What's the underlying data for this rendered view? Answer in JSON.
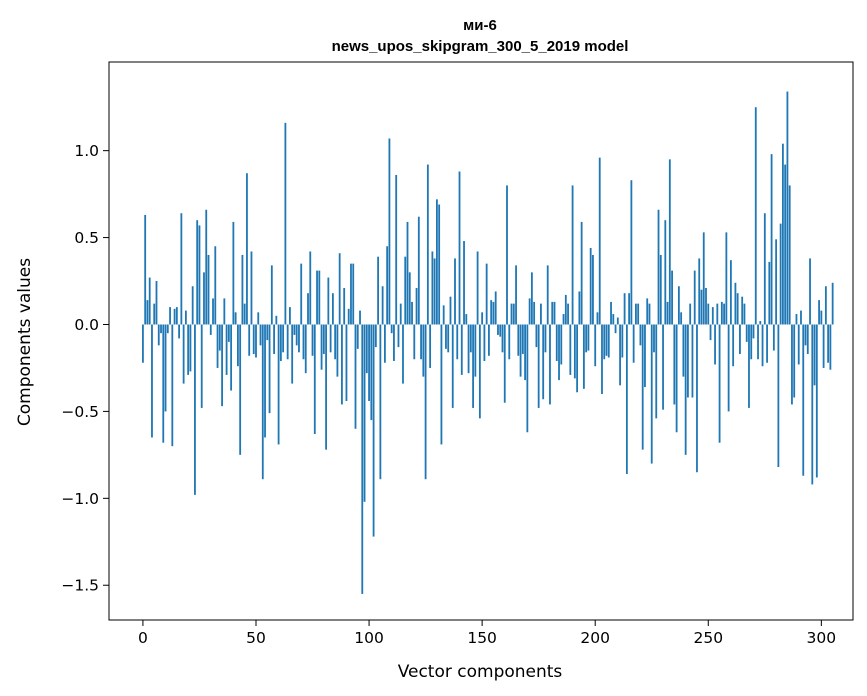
{
  "chart_data": {
    "type": "bar",
    "title": "ми-6",
    "subtitle": "news_upos_skipgram_300_5_2019 model",
    "xlabel": "Vector components",
    "ylabel": "Components values",
    "xlim": [
      -15,
      314
    ],
    "ylim": [
      -1.7,
      1.51
    ],
    "xticks": [
      0,
      50,
      100,
      150,
      200,
      250,
      300
    ],
    "yticks": [
      -1.5,
      -1.0,
      -0.5,
      0.0,
      0.5,
      1.0
    ],
    "ytick_labels": [
      "−1.5",
      "−1.0",
      "−0.5",
      "0.0",
      "0.5",
      "1.0"
    ],
    "grid": false,
    "legend": "none",
    "bar_color": "#1f77b4",
    "values": [
      -0.22,
      0.63,
      0.14,
      0.27,
      -0.65,
      0.12,
      0.25,
      -0.12,
      -0.05,
      -0.68,
      -0.5,
      -0.05,
      0.1,
      -0.7,
      0.09,
      0.1,
      -0.08,
      0.64,
      -0.34,
      0.08,
      -0.29,
      -0.27,
      0.22,
      -0.98,
      0.6,
      0.57,
      -0.48,
      0.3,
      0.66,
      0.4,
      -0.06,
      0.15,
      0.45,
      -0.25,
      -0.15,
      -0.47,
      0.15,
      -0.29,
      -0.1,
      -0.38,
      0.59,
      0.07,
      -0.24,
      -0.75,
      0.4,
      0.12,
      0.87,
      -0.18,
      0.42,
      -0.17,
      -0.19,
      0.07,
      -0.12,
      -0.89,
      -0.65,
      -0.09,
      -0.51,
      0.34,
      -0.17,
      0.05,
      -0.69,
      -0.21,
      -0.16,
      1.16,
      -0.2,
      0.1,
      -0.34,
      -0.06,
      -0.12,
      -0.16,
      0.35,
      -0.2,
      -0.28,
      0.18,
      0.42,
      -0.18,
      -0.63,
      0.31,
      0.31,
      -0.26,
      -0.17,
      -0.72,
      0.27,
      -0.16,
      0.18,
      -0.2,
      -0.3,
      0.41,
      -0.46,
      0.21,
      -0.44,
      0.09,
      0.35,
      0.35,
      -0.6,
      -0.14,
      0.08,
      -1.55,
      -1.02,
      -0.28,
      -0.44,
      -0.55,
      -1.22,
      -0.13,
      0.39,
      -0.89,
      0.22,
      -0.22,
      0.45,
      1.07,
      -0.05,
      -0.21,
      0.86,
      -0.13,
      0.12,
      -0.34,
      0.39,
      0.59,
      0.3,
      0.13,
      -0.2,
      0.21,
      0.62,
      -0.2,
      -0.3,
      -0.89,
      0.92,
      -0.25,
      0.42,
      0.38,
      0.72,
      0.69,
      -0.69,
      0.11,
      -0.14,
      -0.16,
      0.16,
      -0.48,
      0.38,
      -0.2,
      0.88,
      -0.29,
      0.48,
      0.06,
      -0.28,
      -0.16,
      -0.48,
      -0.3,
      0.42,
      -0.54,
      0.07,
      -0.21,
      0.35,
      -0.18,
      0.14,
      0.13,
      0.19,
      -0.06,
      -0.07,
      -0.16,
      -0.45,
      0.8,
      -0.2,
      0.12,
      0.12,
      0.34,
      -0.18,
      -0.3,
      -0.17,
      -0.32,
      -0.62,
      0.15,
      0.3,
      0.13,
      -0.13,
      -0.48,
      0.12,
      -0.43,
      -0.16,
      0.34,
      -0.46,
      0.13,
      0.13,
      -0.21,
      -0.32,
      -0.23,
      0.06,
      0.17,
      0.12,
      -0.29,
      0.8,
      -0.31,
      -0.39,
      0.19,
      0.59,
      -0.37,
      -0.16,
      -0.15,
      0.44,
      0.4,
      -0.24,
      0.07,
      0.96,
      -0.4,
      -0.2,
      -0.18,
      -0.19,
      0.13,
      0.06,
      -0.05,
      0.04,
      -0.35,
      -0.19,
      0.18,
      -0.86,
      0.18,
      0.83,
      -0.22,
      0.12,
      0.12,
      -0.12,
      -0.72,
      -0.36,
      0.15,
      0.12,
      -0.8,
      -0.16,
      -0.54,
      0.66,
      0.4,
      -0.49,
      0.6,
      0.13,
      0.95,
      0.31,
      -0.46,
      -0.62,
      0.22,
      0.07,
      -0.3,
      -0.75,
      -0.42,
      0.12,
      -0.42,
      0.31,
      -0.85,
      0.38,
      0.2,
      0.53,
      0.21,
      0.12,
      -0.09,
      0.1,
      -0.23,
      0.12,
      -0.68,
      0.13,
      0.12,
      0.53,
      -0.5,
      0.37,
      -0.24,
      0.24,
      0.18,
      -0.17,
      0.16,
      0.12,
      -0.1,
      -0.48,
      -0.2,
      -0.08,
      1.25,
      -0.2,
      0.02,
      -0.24,
      0.64,
      -0.22,
      0.36,
      0.98,
      -0.15,
      0.49,
      -0.82,
      0.58,
      1.04,
      0.92,
      1.34,
      0.8,
      -0.46,
      -0.42,
      0.06,
      -0.23,
      0.08,
      -0.87,
      -0.12,
      -0.17,
      0.38,
      -0.92,
      -0.35,
      -0.88,
      0.14,
      0.08,
      -0.25,
      0.22,
      -0.22,
      -0.26,
      0.24
    ]
  }
}
